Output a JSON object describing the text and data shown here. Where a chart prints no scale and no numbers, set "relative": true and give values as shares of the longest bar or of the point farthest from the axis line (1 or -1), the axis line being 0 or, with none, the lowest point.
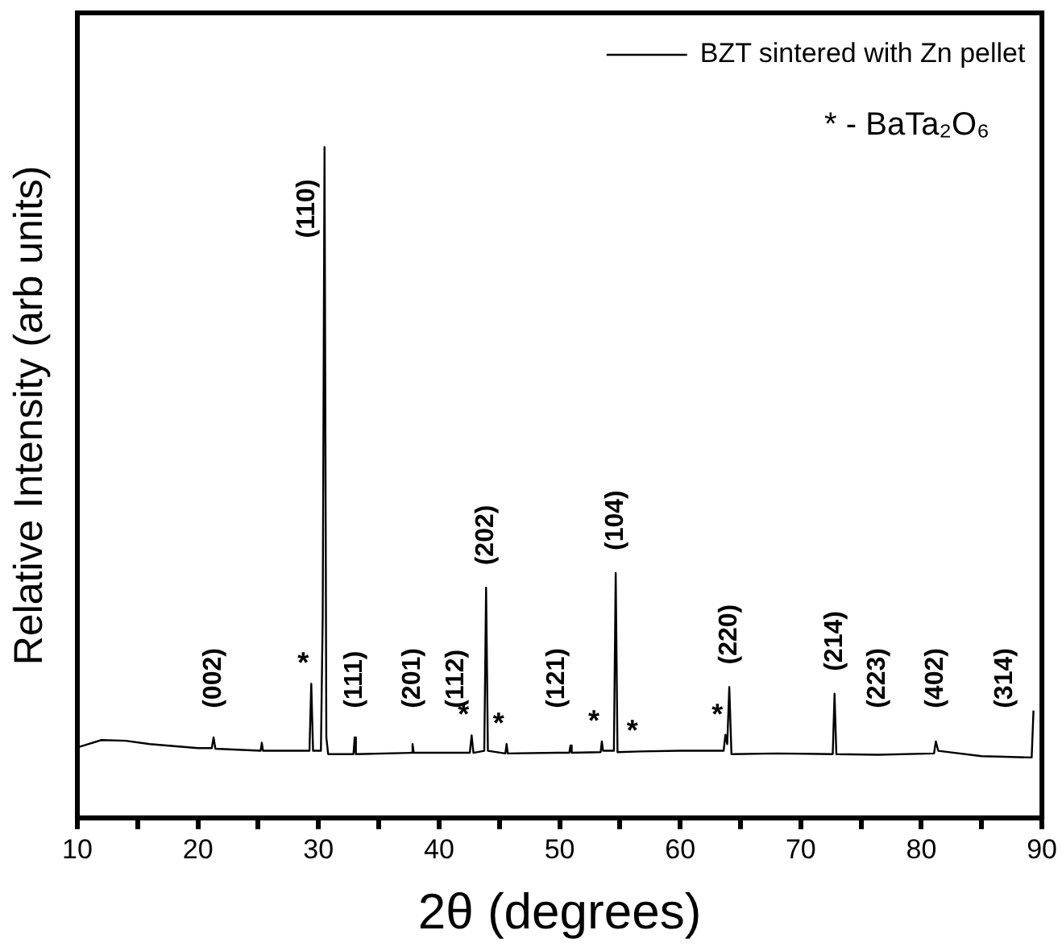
{
  "chart_data": {
    "type": "line",
    "relative": true,
    "xlabel": "2θ (degrees)",
    "ylabel": "Relative Intensity (arb units)",
    "xlim": [
      10,
      90
    ],
    "xticks": [
      10,
      {
        "value": 15,
        "label": null
      },
      20,
      {
        "value": 25,
        "label": null
      },
      30,
      {
        "value": 35,
        "label": null
      },
      40,
      {
        "value": 45,
        "label": null
      },
      50,
      {
        "value": 55,
        "label": null
      },
      60,
      {
        "value": 65,
        "label": null
      },
      70,
      {
        "value": 75,
        "label": null
      },
      80,
      {
        "value": 85,
        "label": null
      },
      90
    ],
    "legend": "top right",
    "grid": false,
    "marker": "none",
    "line_style": "solid",
    "series": [
      {
        "name": "BZT sintered with Zn pellet",
        "color": "#000000",
        "x": [
          10,
          12,
          14,
          16,
          18,
          20,
          21.15,
          21.3,
          21.45,
          25.2,
          25.3,
          25.4,
          29.25,
          29.4,
          29.55,
          30.2,
          30.35,
          30.5,
          30.65,
          30.8,
          32.9,
          33.0,
          33.1,
          37.7,
          37.8,
          37.9,
          41.4,
          42.55,
          42.7,
          42.85,
          43.75,
          43.9,
          44.05,
          45.5,
          45.6,
          45.7,
          49.8,
          50.8,
          50.9,
          51.0,
          53.4,
          53.5,
          53.6,
          54.5,
          54.65,
          54.8,
          56.7,
          60,
          63.6,
          63.75,
          63.9,
          64.07,
          64.25,
          68,
          72.65,
          72.8,
          72.95,
          76.4,
          81.05,
          81.2,
          81.4,
          85,
          86.9,
          89.15,
          89.3
        ],
        "values": [
          0.105,
          0.116,
          0.115,
          0.11,
          0.107,
          0.104,
          0.104,
          0.12,
          0.103,
          0.1,
          0.112,
          0.1,
          0.1,
          0.2,
          0.1,
          0.1,
          0.3,
          1,
          0.12,
          0.095,
          0.095,
          0.12,
          0.095,
          0.097,
          0.11,
          0.097,
          0.097,
          0.097,
          0.123,
          0.097,
          0.1,
          0.343,
          0.1,
          0.096,
          0.11,
          0.096,
          0.097,
          0.097,
          0.108,
          0.097,
          0.098,
          0.114,
          0.1,
          0.1,
          0.365,
          0.098,
          0.099,
          0.1,
          0.1,
          0.124,
          0.11,
          0.195,
          0.095,
          0.096,
          0.095,
          0.185,
          0.095,
          0.094,
          0.096,
          0.114,
          0.1,
          0.092,
          0.091,
          0.09,
          0.16
        ]
      }
    ],
    "annotations": [
      "* - BaTa₂O₆",
      {
        "text": "(002)",
        "x": 21.3,
        "y": 0.12
      },
      {
        "text": "(110)",
        "x": 30.5,
        "y": 1
      },
      {
        "text": "(111)",
        "x": 33.0,
        "y": 0.12
      },
      {
        "text": "(201)",
        "x": 37.8,
        "y": 0.11
      },
      {
        "text": "(112)",
        "x": 41.4,
        "y": 0.097
      },
      {
        "text": "(202)",
        "x": 43.9,
        "y": 0.343
      },
      {
        "text": "(121)",
        "x": 49.8,
        "y": 0.097
      },
      {
        "text": "(104)",
        "x": 54.65,
        "y": 0.365
      },
      {
        "text": "(220)",
        "x": 64.07,
        "y": 0.195
      },
      {
        "text": "(214)",
        "x": 72.8,
        "y": 0.185
      },
      {
        "text": "(223)",
        "x": 76.4,
        "y": 0.094
      },
      {
        "text": "(402)",
        "x": 81.2,
        "y": 0.114
      },
      {
        "text": "(314)",
        "x": 86.9,
        "y": 0.091
      },
      {
        "text": "*",
        "x": 29.4,
        "y": 0.2
      },
      {
        "text": "*",
        "x": 42.7,
        "y": 0.123
      },
      {
        "text": "*",
        "x": 45.6,
        "y": 0.11
      },
      {
        "text": "*",
        "x": 53.5,
        "y": 0.114
      },
      {
        "text": "*",
        "x": 56.7,
        "y": 0.099
      },
      {
        "text": "*",
        "x": 63.75,
        "y": 0.124
      }
    ]
  }
}
